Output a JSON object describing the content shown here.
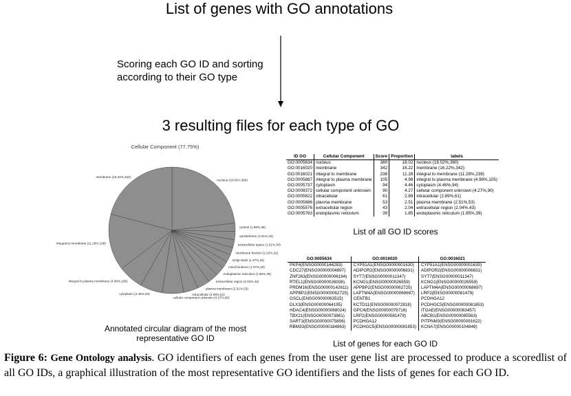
{
  "header": {
    "title": "List of genes with GO annotations",
    "step": [
      "Scoring each GO ID and sorting",
      "according to their GO type"
    ],
    "subtitle": "3 resulting files for each type of GO"
  },
  "pie": {
    "title": "Cellular Component (77.75%)",
    "color": "#8e8e8e",
    "slices": [
      {
        "label": "nucleus (18.02%,380)",
        "value": 18.02
      },
      {
        "label": "cytosol (1.66%,35)",
        "value": 1.66
      },
      {
        "label": "cytoskeleton (1.61%,34)",
        "value": 1.61
      },
      {
        "label": "extracellular space (1.61%,34)",
        "value": 1.61
      },
      {
        "label": "membrane fraction (1.52%,32)",
        "value": 1.52
      },
      {
        "label": "Golgi stack (1.47%,31)",
        "value": 1.47
      },
      {
        "label": "mitochondrion (1.37%,29)",
        "value": 1.37
      },
      {
        "label": "endoplasmic reticulum (1.85%,39)",
        "value": 1.85
      },
      {
        "label": "extracellular region (2.04%,43)",
        "value": 2.04
      },
      {
        "label": "plasma membrane (2.51%,53)",
        "value": 2.51
      },
      {
        "label": "intracellular (2.89%,61)",
        "value": 2.89
      },
      {
        "label": "cellular component unknown (4.27%,90)",
        "value": 4.27
      },
      {
        "label": "cytoplasm (4.46%,94)",
        "value": 4.46
      },
      {
        "label": "integral to plasma membrane (4.98%,105)",
        "value": 4.98
      },
      {
        "label": "integral to membrane (11.28%,238)",
        "value": 11.28
      },
      {
        "label": "membrane (16.22%,342)",
        "value": 16.22
      }
    ],
    "caption": [
      "Annotated circular diagram of the most",
      "representative GO ID"
    ]
  },
  "scores_table": {
    "columns": [
      "ID GO",
      "Cellular Component",
      "Score",
      "Proportion",
      "labels"
    ],
    "rows": [
      [
        "GO:0005634",
        "nucleus",
        "380",
        "18.02",
        "nucleus (18.02%,380)"
      ],
      [
        "GO:0016020",
        "membrane",
        "342",
        "16.22",
        "membrane (16.22%,342)"
      ],
      [
        "GO:0016021",
        "integral to membrane",
        "238",
        "11.28",
        "integral to membrane (11.28%,238)"
      ],
      [
        "GO:0005887",
        "integral to plasma membrane",
        "105",
        "4.98",
        "integral to plasma membrane (4.98%,105)"
      ],
      [
        "GO:0005737",
        "cytoplasm",
        "94",
        "4.46",
        "cytoplasm (4.46%,94)"
      ],
      [
        "GO:0008372",
        "cellular component unknown",
        "90",
        "4.27",
        "cellular component unknown (4.27%,90)"
      ],
      [
        "GO:0005622",
        "intracellular",
        "61",
        "2.89",
        "intracellular (2.89%,61)"
      ],
      [
        "GO:0005886",
        "plasma membrane",
        "53",
        "2.51",
        "plasma membrane (2.51%,53)"
      ],
      [
        "GO:0005576",
        "extracellular region",
        "43",
        "2.04",
        "extracellular region (2.04%,43)"
      ],
      [
        "GO:0005783",
        "endoplasmic reticulum",
        "39",
        "1.85",
        "endoplasmic reticulum (1.85%,39)"
      ]
    ],
    "caption": "List of all GO ID scores"
  },
  "genes_table": {
    "columns": [
      "GO:0005634",
      "GO:0016020",
      "GO:0016021"
    ],
    "rows": [
      [
        "PKP4(ENSG00000144283)",
        "CYP51A1(ENSG00000001630)",
        "CYP51A1(ENSG00000001630)"
      ],
      [
        "CDC27(ENSG00000004897)",
        "ADIPOR2(ENSG00000006831)",
        "ADIPOR2(ENSG00000006831)"
      ],
      [
        "ZNF263(ENSG00000006194)",
        "SYT7(ENSG00000011347)",
        "SYT7(ENSG00000011347)"
      ],
      [
        "RTEL1(ENSG00000026036)",
        "KCNG1(ENSG00000026559)",
        "KCNG1(ENSG00000026559)"
      ],
      [
        "PRDM16(ENSG00000142611)",
        "APPBP2(ENSG00000062725)",
        "LAPTM4A(ENSG00000068697)"
      ],
      [
        "APPBP2(ENSG00000062725)",
        "LAPTM4A(ENSG00000068697)",
        "LRP2(ENSG00000081479)"
      ],
      [
        "GSCL(ENSG00000063515)",
        "CENTB1",
        "PCDHGA12"
      ],
      [
        "DLX3(ENSG00000064195)",
        "KCTD11(ENSG00000072818)",
        "PCDHGC5(ENSG00000081853)"
      ],
      [
        "HDAC4(ENSG00000068024)",
        "GPC4(ENSG00000076716)",
        "ITGAE(ENSG00000083457)"
      ],
      [
        "TBX21(ENSG00000073861)",
        "LRP2(ENSG00000081479)",
        "ABCB1(ENSG00000085563)"
      ],
      [
        "SART3(ENSG00000075856)",
        "PCDHGA12",
        "PITPNM3(ENSG00000091622)"
      ],
      [
        "RBM33(ENSG00000184863)",
        "PCDHGC5(ENSG00000081853)",
        "KCNA7(ENSG00000104848)"
      ]
    ],
    "caption": "List of genes for each GO ID"
  },
  "figure_caption": {
    "label": "Figure 6:",
    "title": "Gene Ontology analysis",
    "text": ". GO identifiers of each genes from the user gene list are processed to produce a scoredlist of all GO IDs, a graphical illustration of the most representative GO identifiers and the lists of genes for each GO ID."
  }
}
